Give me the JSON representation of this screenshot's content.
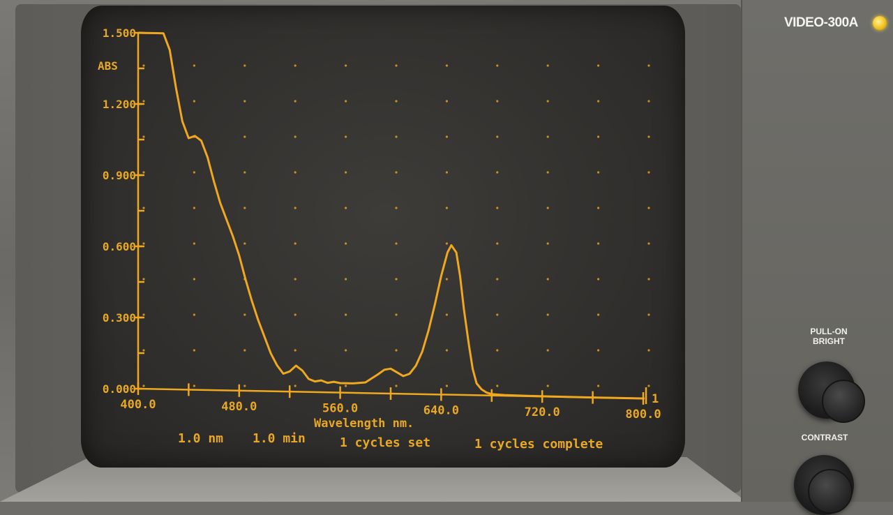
{
  "device": {
    "model": "VIDEO-300A",
    "controls": [
      {
        "label": "PULL-ON\nBRIGHT"
      },
      {
        "label": "CONTRAST"
      }
    ]
  },
  "colors": {
    "trace": "#f0a81e",
    "screen": "#34332f",
    "panel": "#6c6b67"
  },
  "footer": {
    "bandwidth": "1.0 nm",
    "scan_time": "1.0 min",
    "cycles_set": "1 cycles set",
    "cycles_complete": "1 cycles complete"
  },
  "chart_data": {
    "type": "line",
    "ylabel": "ABS",
    "xlabel": "Wavelength nm.",
    "xlim": [
      400,
      800
    ],
    "ylim": [
      0,
      1.5
    ],
    "x_ticks": [
      "400.0",
      "480.0",
      "560.0",
      "640.0",
      "720.0",
      "800.0"
    ],
    "y_ticks": [
      "0.000",
      "0.300",
      "0.600",
      "0.900",
      "1.200",
      "1.500"
    ],
    "cycle_marker": "1",
    "grid": "dotted",
    "series": [
      {
        "x": [
          400,
          405,
          415,
          420,
          425,
          430,
          435,
          440,
          445,
          450,
          455,
          460,
          465,
          470,
          475,
          480,
          485,
          490,
          495,
          500,
          505,
          510,
          515,
          520,
          525,
          530,
          535,
          540,
          545,
          550,
          555,
          560,
          570,
          580,
          590,
          595,
          600,
          605,
          610,
          615,
          620,
          625,
          630,
          635,
          640,
          645,
          648,
          652,
          655,
          658,
          662,
          665,
          668,
          672,
          676,
          680,
          690,
          700,
          720,
          760,
          800
        ],
        "y": [
          1.5,
          1.5,
          1.5,
          1.5,
          1.43,
          1.27,
          1.13,
          1.06,
          1.07,
          1.05,
          0.98,
          0.88,
          0.79,
          0.72,
          0.65,
          0.57,
          0.47,
          0.38,
          0.3,
          0.23,
          0.16,
          0.11,
          0.075,
          0.085,
          0.11,
          0.09,
          0.055,
          0.045,
          0.05,
          0.04,
          0.045,
          0.04,
          0.04,
          0.045,
          0.08,
          0.1,
          0.105,
          0.09,
          0.075,
          0.085,
          0.12,
          0.18,
          0.27,
          0.38,
          0.5,
          0.6,
          0.63,
          0.6,
          0.5,
          0.36,
          0.21,
          0.11,
          0.05,
          0.025,
          0.012,
          0.006,
          0.003,
          0.002,
          0.001,
          0.0,
          0.0
        ]
      }
    ]
  }
}
